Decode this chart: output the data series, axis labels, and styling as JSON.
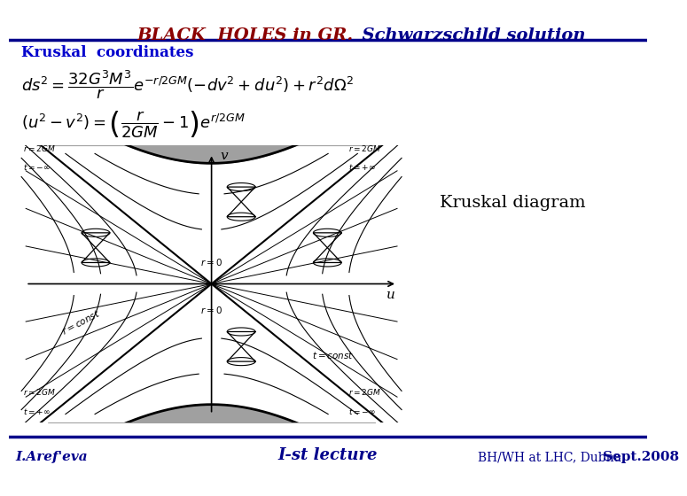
{
  "title1": "BLACK  HOLES in GR.",
  "title2": "  Schwarzschild solution",
  "title1_color": "#8B0000",
  "title2_color": "#00008B",
  "subtitle": "Kruskal  coordinates",
  "subtitle_color": "#0000CD",
  "diagram_label": "Kruskal diagram",
  "footer_left": "I.Aref'eva",
  "footer_mid": "I-st lecture",
  "footer_right": "BH/WH at LHC, Dubna,",
  "footer_right_bold": "Sept.2008",
  "line_color": "#00008B",
  "bg_color": "#ffffff",
  "diagram_bg": "#c8c8c8"
}
